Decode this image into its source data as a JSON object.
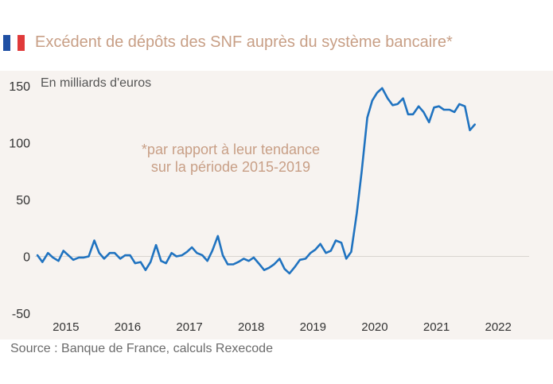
{
  "header": {
    "title": "Excédent de dépôts des SNF auprès du système bancaire*",
    "flag_colors": [
      "#1f4fa3",
      "#ffffff",
      "#e03a3a"
    ]
  },
  "source": "Source :  Banque de France, calculs Rexecode",
  "colors": {
    "title": "#c89f86",
    "line": "#2073c0",
    "annotation": "#c89f86",
    "plot_background": "#f7f3f0"
  },
  "chart_data": {
    "type": "line",
    "ylabel": "En milliards d'euros",
    "annotation": [
      "*par rapport à leur tendance",
      "sur la période 2015-2019"
    ],
    "ylim": [
      -50,
      150
    ],
    "yticks": [
      -50,
      0,
      50,
      100,
      150
    ],
    "xlim": [
      2014.5,
      2022.5
    ],
    "xticks": [
      2015,
      2016,
      2017,
      2018,
      2019,
      2020,
      2021,
      2022
    ],
    "grid": false,
    "series": [
      {
        "values": [
          [
            2014.54,
            1
          ],
          [
            2014.62,
            -5
          ],
          [
            2014.71,
            3
          ],
          [
            2014.79,
            -1
          ],
          [
            2014.88,
            -4
          ],
          [
            2014.96,
            5
          ],
          [
            2015.04,
            1
          ],
          [
            2015.12,
            -3
          ],
          [
            2015.21,
            -1
          ],
          [
            2015.29,
            -1
          ],
          [
            2015.37,
            0
          ],
          [
            2015.46,
            14
          ],
          [
            2015.54,
            3
          ],
          [
            2015.62,
            -2
          ],
          [
            2015.71,
            3
          ],
          [
            2015.79,
            3
          ],
          [
            2015.88,
            -2
          ],
          [
            2015.96,
            1
          ],
          [
            2016.04,
            1
          ],
          [
            2016.12,
            -6
          ],
          [
            2016.21,
            -5
          ],
          [
            2016.29,
            -12
          ],
          [
            2016.37,
            -5
          ],
          [
            2016.46,
            10
          ],
          [
            2016.54,
            -4
          ],
          [
            2016.62,
            -6
          ],
          [
            2016.71,
            3
          ],
          [
            2016.79,
            0
          ],
          [
            2016.88,
            1
          ],
          [
            2016.96,
            4
          ],
          [
            2017.04,
            8
          ],
          [
            2017.12,
            3
          ],
          [
            2017.21,
            1
          ],
          [
            2017.29,
            -4
          ],
          [
            2017.37,
            5
          ],
          [
            2017.46,
            18
          ],
          [
            2017.54,
            1
          ],
          [
            2017.62,
            -7
          ],
          [
            2017.71,
            -7
          ],
          [
            2017.79,
            -5
          ],
          [
            2017.88,
            -2
          ],
          [
            2017.96,
            -4
          ],
          [
            2018.04,
            -1
          ],
          [
            2018.12,
            -6
          ],
          [
            2018.21,
            -12
          ],
          [
            2018.29,
            -10
          ],
          [
            2018.37,
            -7
          ],
          [
            2018.46,
            -2
          ],
          [
            2018.54,
            -11
          ],
          [
            2018.62,
            -15
          ],
          [
            2018.71,
            -9
          ],
          [
            2018.79,
            -3
          ],
          [
            2018.88,
            -2
          ],
          [
            2018.96,
            3
          ],
          [
            2019.04,
            6
          ],
          [
            2019.12,
            11
          ],
          [
            2019.21,
            3
          ],
          [
            2019.29,
            5
          ],
          [
            2019.37,
            14
          ],
          [
            2019.46,
            12
          ],
          [
            2019.54,
            -2
          ],
          [
            2019.62,
            4
          ],
          [
            2019.71,
            38
          ],
          [
            2019.79,
            75
          ],
          [
            2019.88,
            122
          ],
          [
            2019.96,
            137
          ],
          [
            2020.04,
            144
          ],
          [
            2020.12,
            148
          ],
          [
            2020.21,
            139
          ],
          [
            2020.29,
            133
          ],
          [
            2020.37,
            134
          ],
          [
            2020.46,
            139
          ],
          [
            2020.54,
            125
          ],
          [
            2020.62,
            125
          ],
          [
            2020.71,
            132
          ],
          [
            2020.79,
            127
          ],
          [
            2020.88,
            118
          ],
          [
            2020.96,
            131
          ],
          [
            2021.04,
            132
          ],
          [
            2021.12,
            129
          ],
          [
            2021.21,
            129
          ],
          [
            2021.29,
            127
          ],
          [
            2021.37,
            134
          ],
          [
            2021.46,
            132
          ],
          [
            2021.54,
            111
          ],
          [
            2021.62,
            116
          ]
        ]
      }
    ]
  }
}
